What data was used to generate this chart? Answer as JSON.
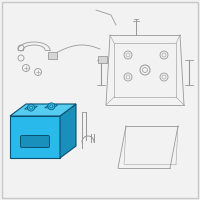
{
  "bg_color": "#f2f2f2",
  "border_color": "#c8c8c8",
  "battery_blue": "#29b9ea",
  "battery_top": "#55ccf0",
  "battery_right": "#1890bb",
  "battery_edge": "#0a5070",
  "line_color": "#999999",
  "line_color_dark": "#777777",
  "white_bg": "#f2f2f2"
}
